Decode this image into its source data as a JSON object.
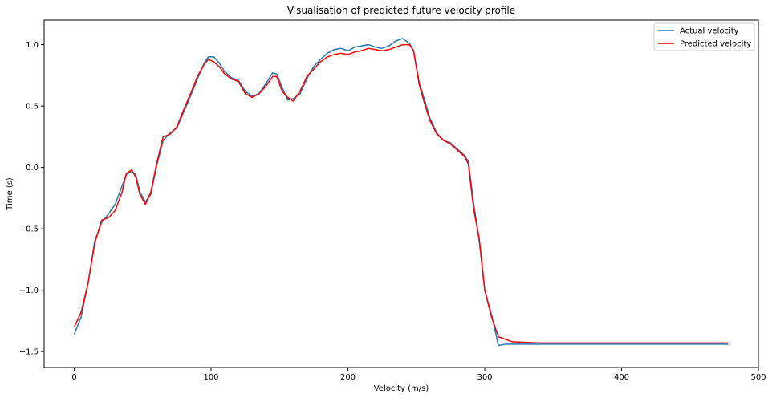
{
  "chart_data": {
    "type": "line",
    "title": "Visualisation of predicted future velocity profile",
    "xlabel": "Velocity (m/s)",
    "ylabel": "Time (s)",
    "xlim": [
      -22,
      500
    ],
    "ylim": [
      -1.63,
      1.2
    ],
    "xticks": [
      0,
      100,
      200,
      300,
      400,
      500
    ],
    "yticks": [
      -1.5,
      -1.0,
      -0.5,
      0.0,
      0.5,
      1.0
    ],
    "xtick_labels": [
      "0",
      "100",
      "200",
      "300",
      "400",
      "500"
    ],
    "ytick_labels": [
      "−1.5",
      "−1.0",
      "−0.5",
      "0.0",
      "0.5",
      "1.0"
    ],
    "grid": false,
    "legend_position": "top-right",
    "series": [
      {
        "name": "Actual velocity",
        "color": "#1f77b4",
        "x": [
          0,
          5,
          10,
          15,
          20,
          25,
          30,
          35,
          38,
          42,
          45,
          48,
          52,
          56,
          60,
          65,
          70,
          75,
          80,
          85,
          90,
          95,
          98,
          102,
          106,
          110,
          115,
          120,
          125,
          130,
          135,
          140,
          145,
          148,
          152,
          156,
          160,
          165,
          170,
          175,
          180,
          185,
          190,
          195,
          200,
          205,
          210,
          215,
          220,
          225,
          230,
          235,
          240,
          245,
          248,
          252,
          256,
          260,
          265,
          270,
          275,
          280,
          285,
          288,
          292,
          296,
          300,
          305,
          310,
          315,
          320,
          340,
          360,
          380,
          400,
          420,
          440,
          460,
          478
        ],
        "y": [
          -1.36,
          -1.22,
          -0.95,
          -0.6,
          -0.45,
          -0.38,
          -0.3,
          -0.15,
          -0.06,
          -0.03,
          -0.06,
          -0.2,
          -0.28,
          -0.22,
          0.0,
          0.22,
          0.28,
          0.32,
          0.45,
          0.58,
          0.72,
          0.85,
          0.9,
          0.9,
          0.85,
          0.78,
          0.73,
          0.71,
          0.62,
          0.58,
          0.6,
          0.68,
          0.77,
          0.76,
          0.65,
          0.55,
          0.56,
          0.6,
          0.72,
          0.82,
          0.88,
          0.93,
          0.96,
          0.97,
          0.95,
          0.98,
          0.99,
          1.0,
          0.98,
          0.97,
          0.99,
          1.03,
          1.05,
          1.01,
          0.95,
          0.7,
          0.55,
          0.4,
          0.28,
          0.22,
          0.2,
          0.15,
          0.1,
          0.05,
          -0.3,
          -0.6,
          -1.0,
          -1.2,
          -1.45,
          -1.44,
          -1.44,
          -1.44,
          -1.44,
          -1.44,
          -1.44,
          -1.44,
          -1.44,
          -1.44,
          -1.44
        ]
      },
      {
        "name": "Predicted velocity",
        "color": "#ff0000",
        "x": [
          0,
          5,
          10,
          15,
          20,
          25,
          30,
          35,
          38,
          42,
          45,
          48,
          52,
          56,
          60,
          65,
          70,
          75,
          80,
          85,
          90,
          95,
          98,
          102,
          106,
          110,
          115,
          120,
          125,
          130,
          135,
          140,
          145,
          148,
          152,
          156,
          160,
          165,
          170,
          175,
          180,
          185,
          190,
          195,
          200,
          205,
          210,
          215,
          220,
          225,
          230,
          235,
          240,
          245,
          248,
          252,
          256,
          260,
          265,
          270,
          275,
          280,
          285,
          288,
          292,
          296,
          300,
          305,
          310,
          315,
          320,
          340,
          360,
          380,
          400,
          420,
          440,
          460,
          478
        ],
        "y": [
          -1.3,
          -1.18,
          -0.95,
          -0.62,
          -0.43,
          -0.41,
          -0.35,
          -0.2,
          -0.05,
          -0.02,
          -0.08,
          -0.22,
          -0.3,
          -0.2,
          0.02,
          0.25,
          0.27,
          0.33,
          0.47,
          0.6,
          0.74,
          0.84,
          0.88,
          0.86,
          0.82,
          0.76,
          0.72,
          0.7,
          0.6,
          0.57,
          0.6,
          0.66,
          0.74,
          0.74,
          0.62,
          0.57,
          0.54,
          0.62,
          0.74,
          0.8,
          0.86,
          0.9,
          0.92,
          0.93,
          0.92,
          0.94,
          0.95,
          0.97,
          0.96,
          0.95,
          0.96,
          0.98,
          1.0,
          1.0,
          0.95,
          0.68,
          0.52,
          0.38,
          0.27,
          0.22,
          0.19,
          0.14,
          0.09,
          0.03,
          -0.35,
          -0.58,
          -1.0,
          -1.22,
          -1.38,
          -1.4,
          -1.42,
          -1.43,
          -1.43,
          -1.43,
          -1.43,
          -1.43,
          -1.43,
          -1.43,
          -1.43
        ]
      }
    ]
  }
}
